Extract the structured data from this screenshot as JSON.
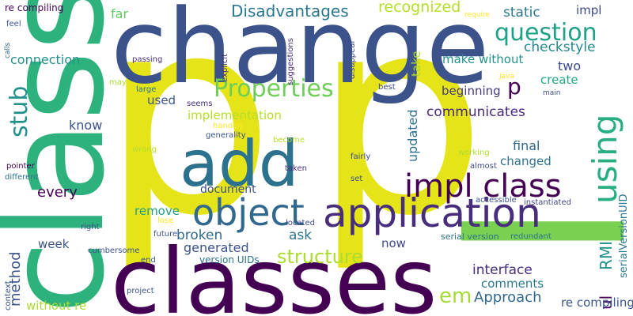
{
  "words": [
    "p",
    "l",
    "class",
    "change",
    "classes",
    "add",
    "application",
    "object",
    "impl class",
    "using",
    "Properties",
    "question",
    "stub",
    "structure",
    "em",
    "Disadvantages",
    "RMI",
    "ul",
    "recognized",
    "checkstyle",
    "static",
    "impl",
    "communicates",
    "interface",
    "comments",
    "Approach",
    "method",
    "every",
    "connection",
    "make without",
    "create",
    "two",
    "beginning",
    "updated",
    "take",
    "implementation",
    "used",
    "know",
    "document",
    "remove",
    "broken",
    "generated",
    "ask",
    "week",
    "now",
    "far",
    "final",
    "changed",
    "serialVersionUID",
    "re compiling",
    "feel",
    "calls",
    "may",
    "passing",
    "explicit",
    "suggestions",
    "disappear",
    "require",
    "Java",
    "main",
    "best",
    "large",
    "seems",
    "handed",
    "generality",
    "become",
    "wrong",
    "fairly",
    "working",
    "almost",
    "pointer",
    "different",
    "taken",
    "set",
    "accessible",
    "instantiated",
    "right",
    "lose",
    "future",
    "located",
    "serial version",
    "redundant",
    "cumbersome",
    "context",
    "end",
    "project",
    "version UIDs",
    "new",
    "without re"
  ],
  "colors": {
    "background": "#ffffff",
    "dark_purple": "#440154",
    "purple": "#472d7b",
    "indigo": "#3b528b",
    "blue": "#2c728e",
    "teal": "#21918c",
    "green_teal": "#28ae80",
    "green": "#5ec962",
    "lime": "#addc30",
    "yellow": "#fde725"
  }
}
